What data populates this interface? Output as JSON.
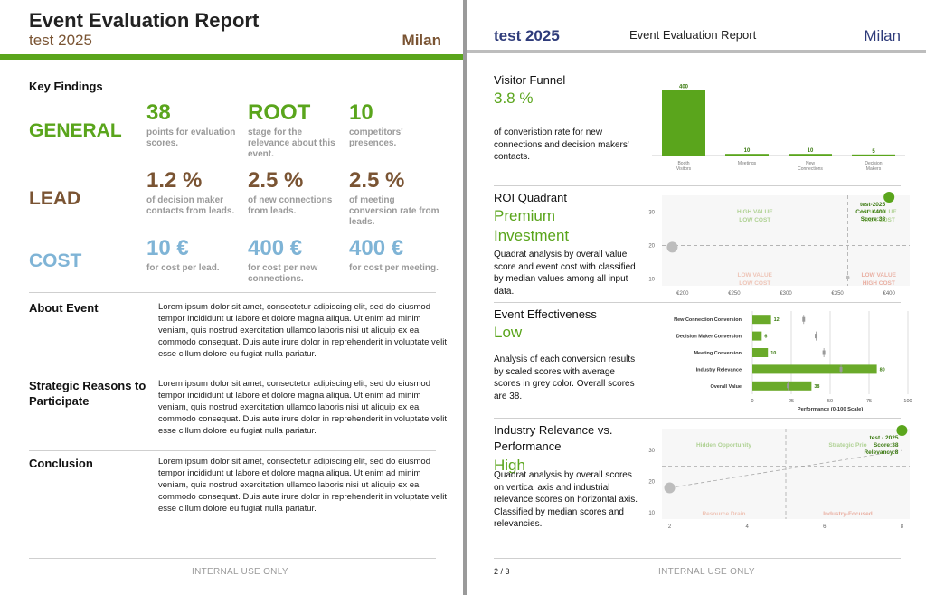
{
  "colors": {
    "green": "#5aa51c",
    "brown": "#7a5433",
    "blue": "#7fb4d6",
    "navy": "#2e3b7a",
    "grey": "#9a9a9a"
  },
  "page1": {
    "title": "Event Evaluation Report",
    "subtitle": "test 2025",
    "city": "Milan",
    "key_findings_title": "Key Findings",
    "categories": [
      {
        "label": "GENERAL",
        "metrics": [
          {
            "value": "38",
            "desc": "points for evaluation scores."
          },
          {
            "value": "ROOT",
            "desc": "stage for the relevance about this event."
          },
          {
            "value": "10",
            "desc": "competitors' presences."
          }
        ]
      },
      {
        "label": "LEAD",
        "metrics": [
          {
            "value": "1.2 %",
            "desc": "of decision maker contacts from leads."
          },
          {
            "value": "2.5 %",
            "desc": "of new connections from leads."
          },
          {
            "value": "2.5 %",
            "desc": "of meeting conversion rate from leads."
          }
        ]
      },
      {
        "label": "COST",
        "metrics": [
          {
            "value": "10 €",
            "desc": "for cost per lead."
          },
          {
            "value": "400 €",
            "desc": "for cost per new connections."
          },
          {
            "value": "400 €",
            "desc": "for cost per meeting."
          }
        ]
      }
    ],
    "sections": [
      {
        "heading": "About Event",
        "body": "Lorem ipsum dolor sit amet, consectetur adipiscing elit, sed do eiusmod tempor incididunt ut labore et dolore magna aliqua. Ut enim ad minim veniam, quis nostrud exercitation ullamco laboris nisi ut aliquip ex ea commodo consequat. Duis aute irure dolor in reprehenderit in voluptate velit esse cillum dolore eu fugiat nulla pariatur."
      },
      {
        "heading": "Strategic Reasons to Participate",
        "body": "Lorem ipsum dolor sit amet, consectetur adipiscing elit, sed do eiusmod tempor incididunt ut labore et dolore magna aliqua. Ut enim ad minim veniam, quis nostrud exercitation ullamco laboris nisi ut aliquip ex ea commodo consequat. Duis aute irure dolor in reprehenderit in voluptate velit esse cillum dolore eu fugiat nulla pariatur."
      },
      {
        "heading": "Conclusion",
        "body": "Lorem ipsum dolor sit amet, consectetur adipiscing elit, sed do eiusmod tempor incididunt ut labore et dolore magna aliqua. Ut enim ad minim veniam, quis nostrud exercitation ullamco laboris nisi ut aliquip ex ea commodo consequat. Duis aute irure dolor in reprehenderit in voluptate velit esse cillum dolore eu fugiat nulla pariatur."
      }
    ],
    "footer": "INTERNAL USE ONLY"
  },
  "page2": {
    "subtitle": "test 2025",
    "title": "Event Evaluation Report",
    "city": "Milan",
    "funnel": {
      "title": "Visitor Funnel",
      "value": "3.8 %",
      "desc": "of converistion rate for new connections and decision makers' contacts."
    },
    "roi": {
      "title": "ROI Quadrant",
      "value": "Premium Investment",
      "desc": "Quadrat analysis by overall value score and event cost with classified by median values among all input data."
    },
    "effectiveness": {
      "title": "Event Effectiveness",
      "value": "Low",
      "desc": "Analysis of each conversion results by scaled scores with average scores in grey color. Overall scores are 38."
    },
    "relevance": {
      "title": "Industry Relevance vs. Performance",
      "value": "High",
      "desc": "Quadrat analysis by overall scores on vertical axis and industrial relevance scores on horizontal axis. Classified by median scores and relevancies."
    },
    "page_number": "2 / 3",
    "footer": "INTERNAL USE ONLY"
  },
  "chart_data": [
    {
      "type": "bar",
      "categories": [
        "Booth Visitors",
        "Meetings",
        "New Connections",
        "Decision Makers"
      ],
      "values": [
        400,
        10,
        10,
        5
      ],
      "ylim": [
        0,
        420
      ]
    },
    {
      "type": "scatter",
      "x_ticks": [
        "€200",
        "€250",
        "€300",
        "€350",
        "€400"
      ],
      "y_ticks": [
        "10",
        "20",
        "30"
      ],
      "xlim": [
        180,
        420
      ],
      "ylim": [
        8,
        35
      ],
      "quadrants": {
        "top_left": "HIGH VALUE LOW COST",
        "top_right": "HIGH VALUE HIGH COST",
        "bottom_left": "LOW VALUE LOW COST",
        "bottom_right": "LOW VALUE HIGH COST"
      },
      "median_x": 360,
      "median_y": 20,
      "points": [
        {
          "x": 400,
          "y": 38,
          "label_lines": [
            "test-2025",
            "Cost: €400",
            "Score:38"
          ],
          "highlight": true
        },
        {
          "x": 190,
          "y": 19.5,
          "highlight": false
        },
        {
          "x": 360,
          "y": 10.5,
          "highlight": false
        }
      ]
    },
    {
      "type": "bar",
      "orientation": "horizontal",
      "categories": [
        "New Connection Conversion",
        "Decision Maker Conversion",
        "Meeting Conversion",
        "Industry Relevance",
        "Overall Value"
      ],
      "values": [
        12,
        6,
        10,
        80,
        38
      ],
      "averages": [
        33,
        41,
        46,
        57,
        23
      ],
      "x_ticks": [
        "0",
        "25",
        "50",
        "75",
        "100"
      ],
      "xlim": [
        0,
        100
      ],
      "xlabel": "Performance (0-100 Scale)"
    },
    {
      "type": "scatter",
      "x_ticks": [
        "2",
        "4",
        "6",
        "8"
      ],
      "y_ticks": [
        "10",
        "20",
        "30"
      ],
      "xlim": [
        1.8,
        8.2
      ],
      "ylim": [
        8,
        37
      ],
      "quadrants": {
        "top_left": "Hidden Opportunity",
        "top_right": "Strategic Prio",
        "bottom_left": "Resource Drain",
        "bottom_right": "Industry-Focused"
      },
      "median_x": 5,
      "median_y": 25,
      "points": [
        {
          "x": 8,
          "y": 38,
          "label_lines": [
            "test - 2025",
            "Score:38",
            "Relevancy:8"
          ],
          "highlight": true
        },
        {
          "x": 2,
          "y": 18,
          "highlight": false
        }
      ],
      "trend": [
        [
          2,
          18
        ],
        [
          8,
          30
        ]
      ]
    }
  ]
}
